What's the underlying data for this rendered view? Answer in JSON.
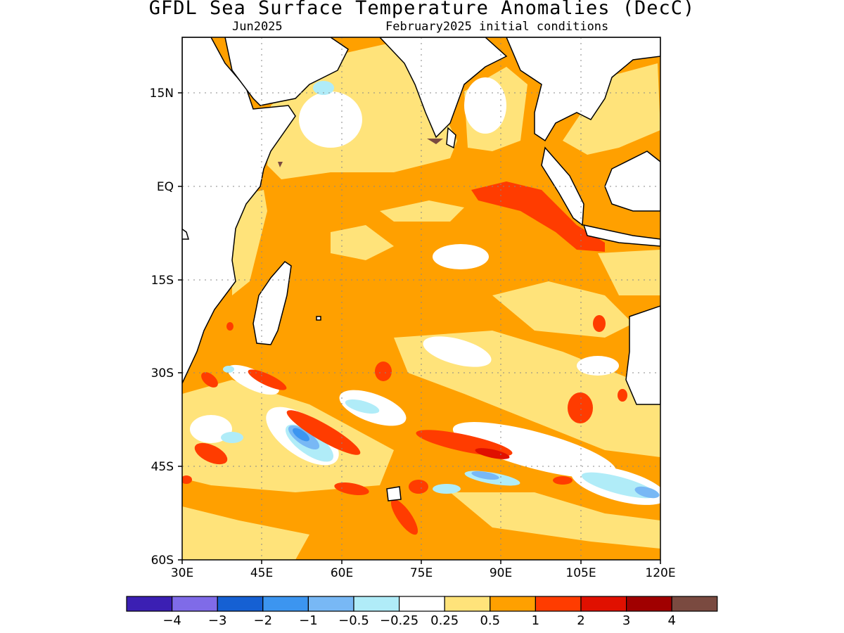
{
  "title": "GFDL Sea Surface Temperature Anomalies (DecC)",
  "subtitle_left": "Jun2025",
  "subtitle_right": "February2025 initial conditions",
  "axes": {
    "lon_range": [
      30,
      120
    ],
    "lat_range": [
      -60,
      24
    ],
    "lon_ticks": [
      "30E",
      "45E",
      "60E",
      "75E",
      "90E",
      "105E",
      "120E"
    ],
    "lat_ticks": [
      "15N",
      "EQ",
      "15S",
      "30S",
      "45S",
      "60S"
    ],
    "grid": true
  },
  "colorbar": {
    "colors": [
      "#3b1fb3",
      "#7f6be8",
      "#1560d3",
      "#3c95f0",
      "#78b8f5",
      "#b0ecf8",
      "#ffffff",
      "#ffe37a",
      "#ffa000",
      "#ff3c00",
      "#e01000",
      "#a00000",
      "#7a4a40"
    ],
    "labels": [
      "-4",
      "-3",
      "-2",
      "-1",
      "-0.5",
      "-0.25",
      "0.25",
      "0.5",
      "1",
      "2",
      "3",
      "4"
    ]
  },
  "colors": {
    "land": "#ffffff",
    "coast": "#000000",
    "light_orange": "#ffe37a",
    "orange": "#ffa000",
    "red": "#ff3c00",
    "dark_red": "#e01000",
    "light_blue": "#b0ecf8",
    "mid_blue": "#78b8f5",
    "blue": "#3c95f0",
    "brown": "#7a4a40"
  }
}
